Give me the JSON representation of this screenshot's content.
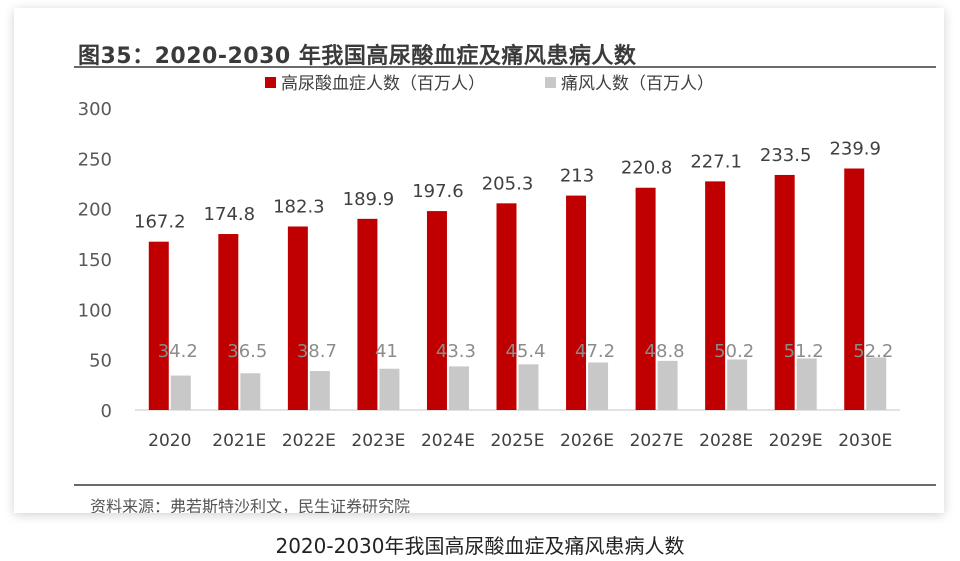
{
  "figure_title": "图35：2020-2030 年我国高尿酸血症及痛风患病人数",
  "source_text": "资料来源：弗若斯特沙利文，民生证券研究院",
  "caption": "2020-2030年我国高尿酸血症及痛风患病人数",
  "colors": {
    "hyperuricemia": "#c00000",
    "gout": "#c8c8c8"
  },
  "chart_data": {
    "type": "bar",
    "title": "",
    "xlabel": "",
    "ylabel": "",
    "ylim": [
      0,
      300
    ],
    "yticks": [
      0,
      50,
      100,
      150,
      200,
      250,
      300
    ],
    "grid": false,
    "legend_position": "top-center",
    "categories": [
      "2020",
      "2021E",
      "2022E",
      "2023E",
      "2024E",
      "2025E",
      "2026E",
      "2027E",
      "2028E",
      "2029E",
      "2030E"
    ],
    "series": [
      {
        "name": "高尿酸血症人数（百万人）",
        "values": [
          167.2,
          174.8,
          182.3,
          189.9,
          197.6,
          205.3,
          213,
          220.8,
          227.1,
          233.5,
          239.9
        ],
        "labels": [
          "167.2",
          "174.8",
          "182.3",
          "189.9",
          "197.6",
          "205.3",
          "213",
          "220.8",
          "227.1",
          "233.5",
          "239.9"
        ]
      },
      {
        "name": "痛风人数（百万人）",
        "values": [
          34.2,
          36.5,
          38.7,
          41,
          43.3,
          45.4,
          47.2,
          48.8,
          50.2,
          51.2,
          52.2
        ],
        "labels": [
          "34.2",
          "36.5",
          "38.7",
          "41",
          "43.3",
          "45.4",
          "47.2",
          "48.8",
          "50.2",
          "51.2",
          "52.2"
        ]
      }
    ]
  }
}
